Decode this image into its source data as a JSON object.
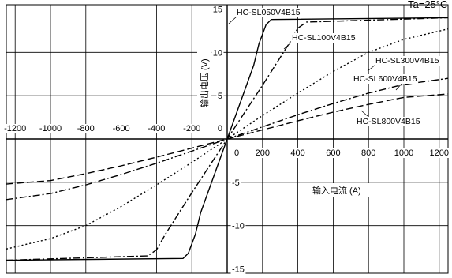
{
  "chart_data": {
    "type": "line",
    "condition_label": "Ta=25°C",
    "xlabel": "输入电流  (A)",
    "ylabel": "输出电压  (V)",
    "xlim": [
      -1250,
      1250
    ],
    "ylim": [
      -15.5,
      15.5
    ],
    "x_ticks": [
      -1200,
      -1000,
      -800,
      -600,
      -400,
      -200,
      0,
      200,
      400,
      600,
      800,
      1000,
      1200
    ],
    "y_ticks": [
      -15,
      -10,
      -5,
      0,
      5,
      10,
      15
    ],
    "grid": true,
    "series": [
      {
        "name": "HC-SL050V4B15",
        "dash": "solid",
        "x": [
          -1250,
          -250,
          -220,
          -180,
          -150,
          0,
          150,
          180,
          220,
          250,
          1250
        ],
        "y": [
          -14.0,
          -13.8,
          -13.2,
          -11.0,
          -8.5,
          0,
          8.5,
          11.0,
          13.2,
          13.8,
          14.0
        ]
      },
      {
        "name": "HC-SL100V4B15",
        "dash": "dashdot",
        "x": [
          -1250,
          -450,
          -400,
          -350,
          -200,
          0,
          200,
          350,
          400,
          450,
          1250
        ],
        "y": [
          -14.0,
          -13.5,
          -12.8,
          -11.0,
          -6.2,
          0,
          6.2,
          11.0,
          12.8,
          13.5,
          14.0
        ]
      },
      {
        "name": "HC-SL300V4B15",
        "dash": "dotted",
        "x": [
          -1250,
          -1000,
          -800,
          -600,
          -400,
          -200,
          0,
          200,
          400,
          600,
          800,
          1000,
          1250
        ],
        "y": [
          -12.7,
          -11.5,
          -10.0,
          -7.8,
          -5.3,
          -2.7,
          0,
          2.7,
          5.3,
          7.8,
          10.0,
          11.5,
          12.7
        ]
      },
      {
        "name": "HC-SL600V4B15",
        "dash": "dashdot",
        "x": [
          -1250,
          -1000,
          -800,
          -600,
          -400,
          -200,
          0,
          200,
          400,
          600,
          800,
          1000,
          1250
        ],
        "y": [
          -7.0,
          -6.3,
          -5.3,
          -4.1,
          -2.8,
          -1.4,
          0,
          1.4,
          2.8,
          4.1,
          5.3,
          6.3,
          7.0
        ]
      },
      {
        "name": "HC-SL800V4B15",
        "dash": "dashed",
        "x": [
          -1250,
          -1000,
          -800,
          -600,
          -400,
          -200,
          0,
          200,
          400,
          600,
          800,
          1000,
          1250
        ],
        "y": [
          -5.2,
          -4.8,
          -4.0,
          -3.1,
          -2.1,
          -1.05,
          0,
          1.05,
          2.1,
          3.1,
          4.0,
          4.8,
          5.2
        ]
      }
    ]
  }
}
